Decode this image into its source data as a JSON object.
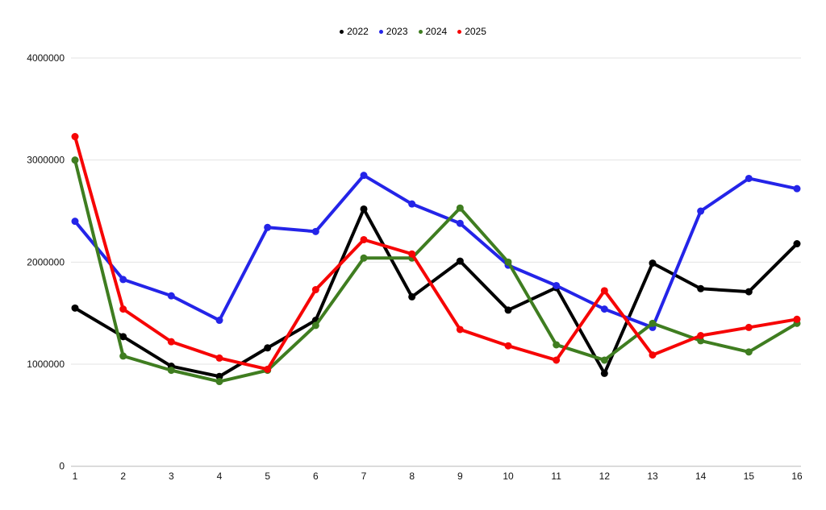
{
  "chart_data": {
    "type": "line",
    "x": [
      1,
      2,
      3,
      4,
      5,
      6,
      7,
      8,
      9,
      10,
      11,
      12,
      13,
      14,
      15,
      16
    ],
    "series": [
      {
        "name": "2022",
        "color": "#000000",
        "values": [
          1550000,
          1270000,
          980000,
          880000,
          1160000,
          1430000,
          2520000,
          1660000,
          2010000,
          1530000,
          1750000,
          910000,
          1990000,
          1740000,
          1710000,
          2180000
        ]
      },
      {
        "name": "2023",
        "color": "#2424e8",
        "values": [
          2400000,
          1830000,
          1670000,
          1430000,
          2340000,
          2300000,
          2850000,
          2570000,
          2380000,
          1970000,
          1770000,
          1540000,
          1360000,
          2500000,
          2820000,
          2720000
        ]
      },
      {
        "name": "2024",
        "color": "#3f7d20",
        "values": [
          3000000,
          1080000,
          940000,
          830000,
          940000,
          1380000,
          2040000,
          2040000,
          2530000,
          2000000,
          1190000,
          1040000,
          1400000,
          1230000,
          1120000,
          1400000
        ]
      },
      {
        "name": "2025",
        "color": "#f60505",
        "values": [
          3230000,
          1540000,
          1220000,
          1060000,
          950000,
          1730000,
          2220000,
          2080000,
          1340000,
          1180000,
          1040000,
          1720000,
          1090000,
          1280000,
          1360000,
          1440000
        ]
      }
    ],
    "ylim": [
      0,
      4000000
    ],
    "yticks": [
      0,
      1000000,
      2000000,
      3000000,
      4000000
    ],
    "grid": "horizontal",
    "legend_position": "top-center",
    "legend_entries": [
      "2022",
      "2023",
      "2024",
      "2025"
    ],
    "axis_colors": {
      "gridline": "#e3e3e3",
      "zero_line": "#b9b9b9",
      "tick_text": "#111111"
    }
  }
}
